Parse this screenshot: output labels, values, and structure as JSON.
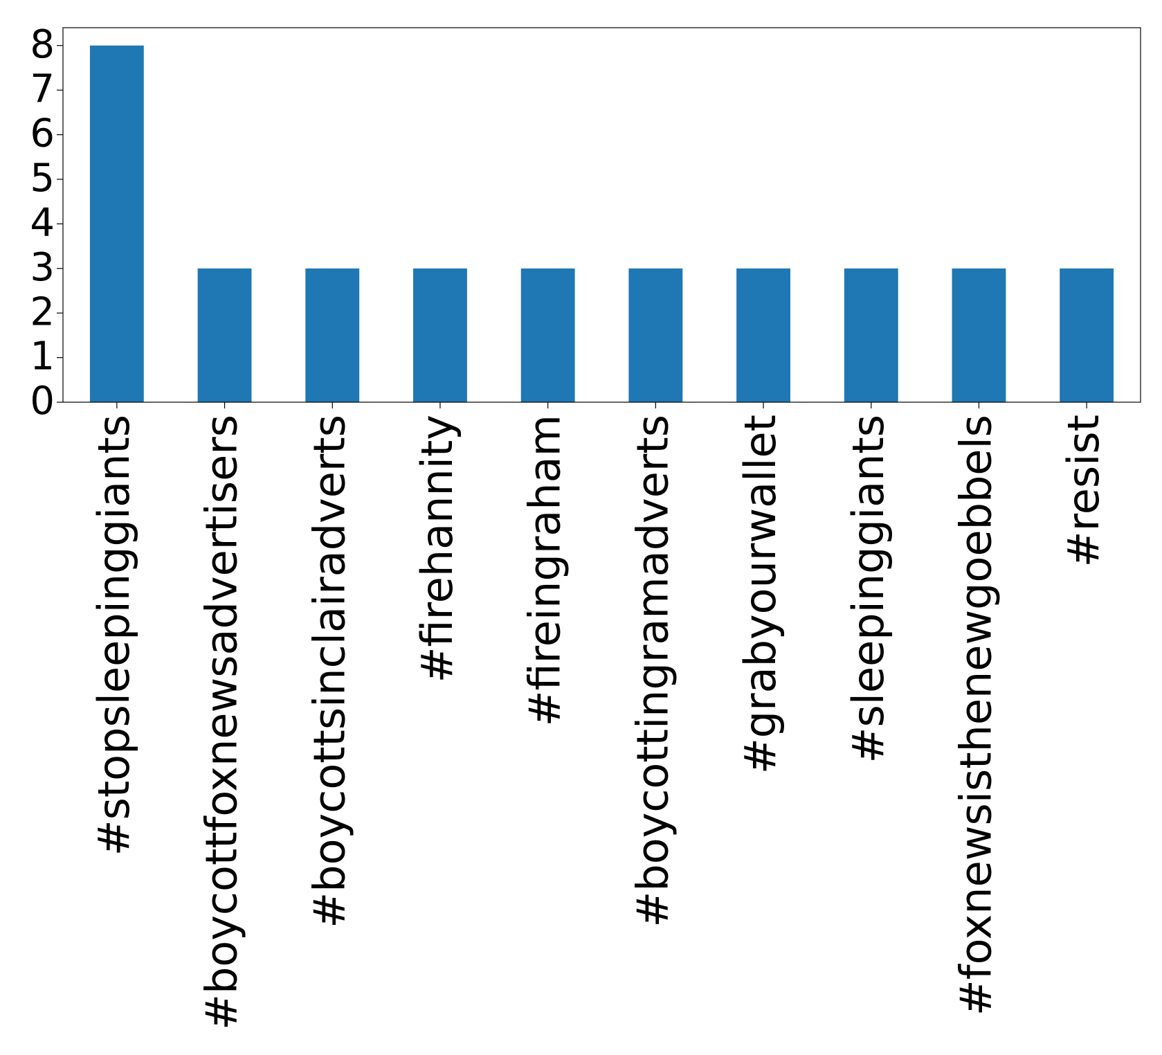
{
  "chart_data": {
    "type": "bar",
    "categories": [
      "#stopsleepinggiants",
      "#boycottfoxnewsadvertisers",
      "#boycottsinclairadverts",
      "#firehannity",
      "#fireingraham",
      "#boycottingramadverts",
      "#grabyourwallet",
      "#sleepinggiants",
      "#foxnewsisthenewgoebbels",
      "#resist"
    ],
    "values": [
      8,
      3,
      3,
      3,
      3,
      3,
      3,
      3,
      3,
      3
    ],
    "color": "#1f77b4",
    "ylim": [
      0,
      8.4
    ],
    "yticks": [
      0,
      1,
      2,
      3,
      4,
      5,
      6,
      7,
      8
    ],
    "grid": false
  }
}
